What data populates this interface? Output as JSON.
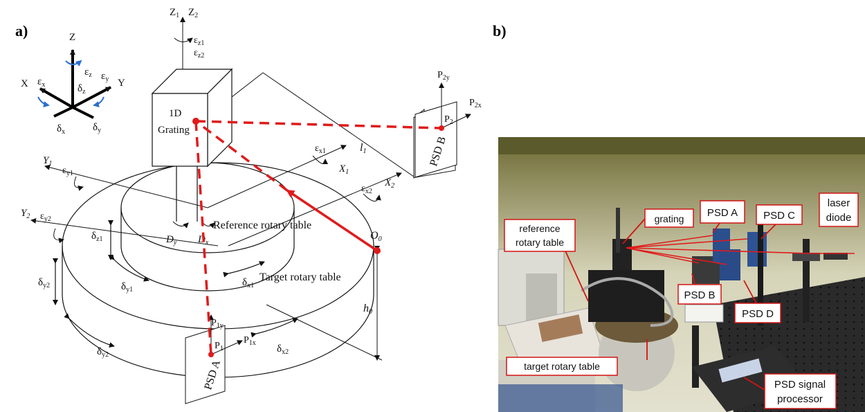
{
  "panel_a": {
    "letter": "a)",
    "axes": {
      "x": "X",
      "y": "Y",
      "z": "Z",
      "ex": "ε",
      "ex_sub": "x",
      "ey": "ε",
      "ey_sub": "y",
      "ez": "ε",
      "ez_sub": "z",
      "dx": "δ",
      "dx_sub": "x",
      "dy": "δ",
      "dy_sub": "y",
      "dz": "δ",
      "dz_sub": "z"
    },
    "z1": "Z",
    "z1_sub": "1",
    "z2": "Z",
    "z2_sub": "2",
    "ez1": "ε",
    "ez1_sub": "z1",
    "ez2": "ε",
    "ez2_sub": "z2",
    "grating": [
      "1D",
      "Grating"
    ],
    "psd_b": "PSD B",
    "psd_a": "PSD A",
    "p2": "P",
    "p2_sub": "2",
    "p2y": "P",
    "p2y_sub": "2y",
    "p2x": "P",
    "p2x_sub": "2x",
    "p1": "P",
    "p1_sub": "1",
    "p1y": "P",
    "p1y_sub": "1y",
    "p1x": "P",
    "p1x_sub": "1x",
    "l1": "l",
    "l1_sub": "1",
    "x1": "X",
    "x1_sub": "1",
    "ex1": "ε",
    "ex1_sub": "x1",
    "x2": "X",
    "x2_sub": "2",
    "ex2": "ε",
    "ex2_sub": "x2",
    "y1": "Y",
    "y1_sub": "1",
    "ey1": "ε",
    "ey1_sub": "y1",
    "y2": "Y",
    "y2_sub": "2",
    "ey2": "ε",
    "ey2_sub": "y2",
    "dz1": "δ",
    "dz1_sub": "z1",
    "dy1": "δ",
    "dy1_sub": "y1",
    "dy2": "δ",
    "dy2_sub": "y2",
    "dy2b": "δ",
    "dy2b_sub": "y2",
    "dx1": "δ",
    "dx1_sub": "x1",
    "dx2": "δ",
    "dx2_sub": "x2",
    "Dy": "D",
    "Dy_sub": "y",
    "Dx": "D",
    "Dx_sub": "x",
    "ref_table": "Reference rotary table",
    "target_table": "Target rotary table",
    "o0": "O",
    "o0_sub": "0",
    "h0": "h",
    "h0_sub": "0"
  },
  "panel_b": {
    "letter": "b)",
    "labels": {
      "grating": "grating",
      "psd_a": "PSD A",
      "psd_c": "PSD C",
      "laser": [
        "laser",
        "diode"
      ],
      "ref_table": [
        "reference",
        "rotary table"
      ],
      "psd_b": "PSD B",
      "psd_d": "PSD D",
      "target_table": "target rotary table",
      "psd_proc": [
        "PSD signal",
        "processor"
      ]
    }
  },
  "colors": {
    "beam": "#e01b1b",
    "blue_arrow": "#2a6fd0",
    "label_border": "#d21414"
  }
}
